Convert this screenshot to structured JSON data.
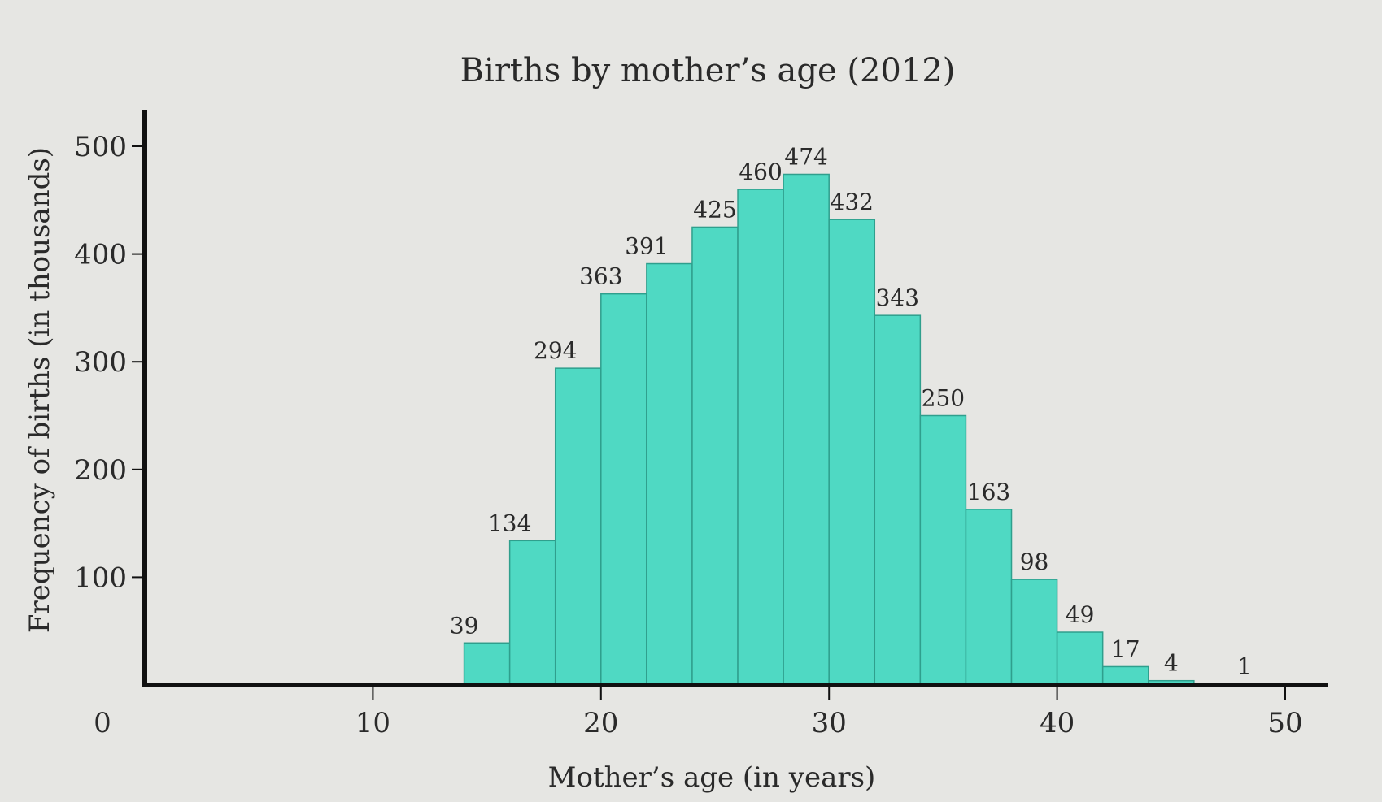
{
  "chart_data": {
    "type": "bar",
    "title": "Births by mother’s age (2012)",
    "xlabel": "Mother’s age (in years)",
    "ylabel": "Frequency of births (in thousands)",
    "xlim": [
      0,
      50
    ],
    "ylim": [
      0,
      500
    ],
    "x_ticks": [
      {
        "value": 0,
        "label": "0"
      },
      {
        "value": 10,
        "label": "10"
      },
      {
        "value": 20,
        "label": "20"
      },
      {
        "value": 30,
        "label": "30"
      },
      {
        "value": 40,
        "label": "40"
      },
      {
        "value": 50,
        "label": "50"
      }
    ],
    "y_ticks": [
      {
        "value": 100,
        "label": "100"
      },
      {
        "value": 200,
        "label": "200"
      },
      {
        "value": 300,
        "label": "300"
      },
      {
        "value": 400,
        "label": "400"
      },
      {
        "value": 500,
        "label": "500"
      }
    ],
    "bin_width": 2,
    "bins": [
      {
        "start": 14,
        "value": 39,
        "label": "39"
      },
      {
        "start": 16,
        "value": 134,
        "label": "134"
      },
      {
        "start": 18,
        "value": 294,
        "label": "294"
      },
      {
        "start": 20,
        "value": 363,
        "label": "363"
      },
      {
        "start": 22,
        "value": 391,
        "label": "391"
      },
      {
        "start": 24,
        "value": 425,
        "label": "425"
      },
      {
        "start": 26,
        "value": 460,
        "label": "460"
      },
      {
        "start": 28,
        "value": 474,
        "label": "474"
      },
      {
        "start": 30,
        "value": 432,
        "label": "432"
      },
      {
        "start": 32,
        "value": 343,
        "label": "343"
      },
      {
        "start": 34,
        "value": 250,
        "label": "250"
      },
      {
        "start": 36,
        "value": 163,
        "label": "163"
      },
      {
        "start": 38,
        "value": 98,
        "label": "98"
      },
      {
        "start": 40,
        "value": 49,
        "label": "49"
      },
      {
        "start": 42,
        "value": 17,
        "label": "17"
      },
      {
        "start": 44,
        "value": 4,
        "label": "4"
      },
      {
        "start": 46,
        "value": 1,
        "label": "1"
      }
    ],
    "bar_color": "#4fd9c3",
    "bar_edge_color": "#2f9f8d",
    "grid": false,
    "legend": "none"
  }
}
